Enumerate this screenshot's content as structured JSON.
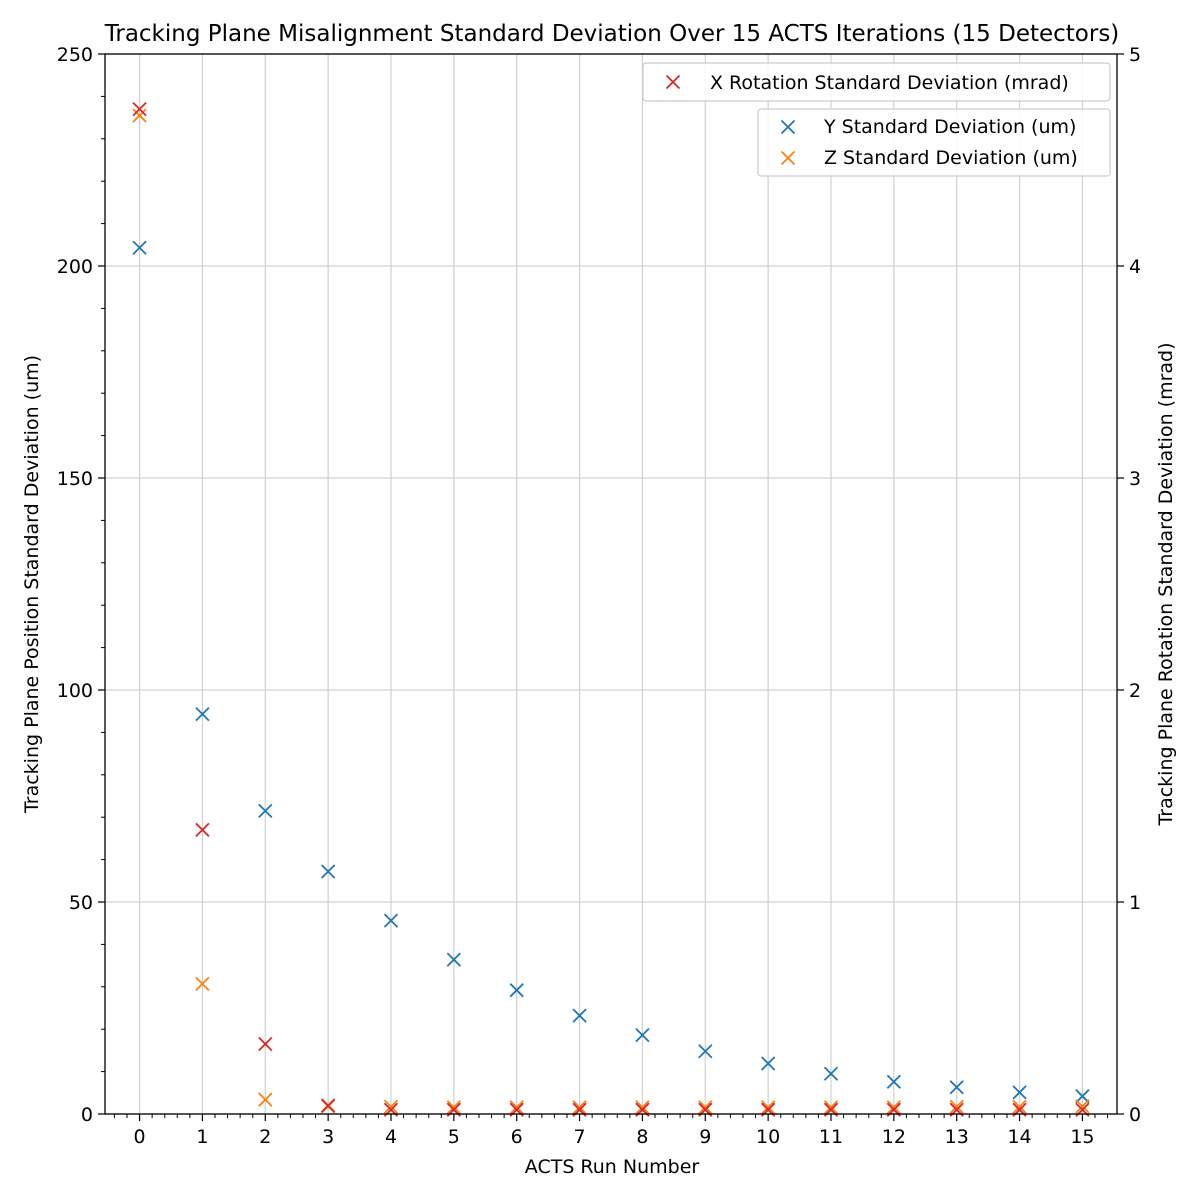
{
  "chart_data": {
    "type": "scatter",
    "title": "Tracking Plane Misalignment Standard Deviation Over 15 ACTS Iterations (15 Detectors)",
    "xlabel": "ACTS Run Number",
    "ylabel_left": "Tracking Plane Position Standard Deviation (um)",
    "ylabel_right": "Tracking Plane Rotation Standard Deviation (mrad)",
    "x": [
      0,
      1,
      2,
      3,
      4,
      5,
      6,
      7,
      8,
      9,
      10,
      11,
      12,
      13,
      14,
      15
    ],
    "x_ticks": [
      "0",
      "1",
      "2",
      "3",
      "4",
      "5",
      "6",
      "7",
      "8",
      "9",
      "10",
      "11",
      "12",
      "13",
      "14",
      "15"
    ],
    "xlim": [
      -0.55,
      15.55
    ],
    "ylim_left": [
      0,
      250
    ],
    "ylim_right": [
      0,
      5
    ],
    "y_ticks_left": [
      "0",
      "50",
      "100",
      "150",
      "200",
      "250"
    ],
    "y_ticks_right": [
      "0",
      "1",
      "2",
      "3",
      "4",
      "5"
    ],
    "grid": true,
    "marker": "x",
    "series": [
      {
        "name": "X Rotation Standard Deviation (mrad)",
        "axis": "right",
        "color": "#d62728",
        "values": [
          4.74,
          1.34,
          0.33,
          0.04,
          0.02,
          0.02,
          0.02,
          0.02,
          0.02,
          0.02,
          0.02,
          0.02,
          0.02,
          0.02,
          0.02,
          0.02
        ]
      },
      {
        "name": "Y Standard Deviation (um)",
        "axis": "left",
        "color": "#1f77b4",
        "values": [
          204.3,
          94.3,
          71.5,
          57.2,
          45.6,
          36.4,
          29.2,
          23.2,
          18.6,
          14.8,
          11.9,
          9.5,
          7.6,
          6.3,
          5.1,
          4.2
        ]
      },
      {
        "name": "Z Standard Deviation (um)",
        "axis": "left",
        "color": "#ff7f0e",
        "values": [
          235.5,
          30.7,
          3.4,
          1.8,
          1.7,
          1.6,
          1.6,
          1.6,
          1.6,
          1.6,
          1.6,
          1.6,
          1.6,
          1.7,
          1.7,
          1.8
        ]
      }
    ],
    "legends": [
      {
        "placement": "top-right",
        "entries": [
          0
        ]
      },
      {
        "placement": "top-right-below",
        "entries": [
          1,
          2
        ]
      }
    ]
  }
}
